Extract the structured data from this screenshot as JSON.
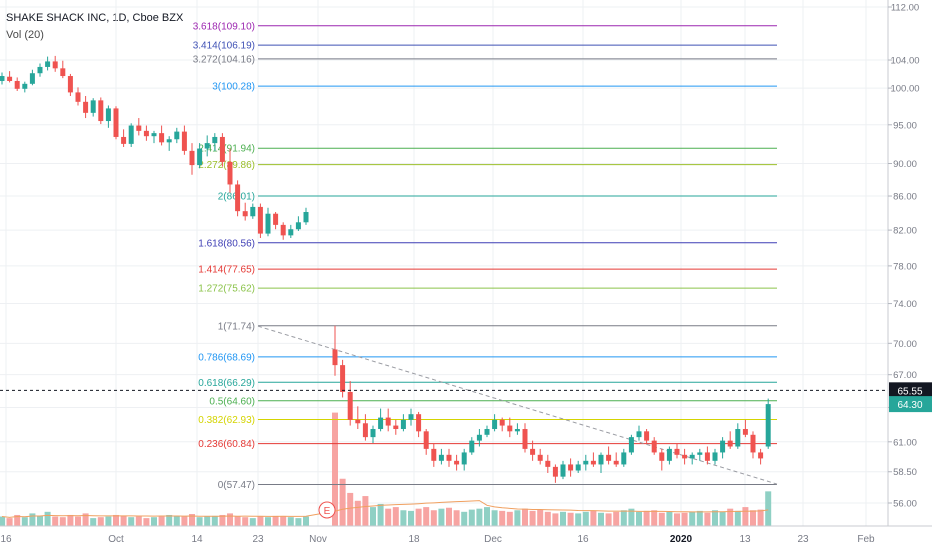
{
  "header": {
    "title": "SHAKE SHACK INC, 1D, Cboe BZX",
    "volume_label": "Vol (20)"
  },
  "chart_data": {
    "type": "candlestick",
    "symbol": "SHAKE SHACK INC",
    "interval": "1D",
    "exchange": "Cboe BZX",
    "y_axis": {
      "ticks": [
        "56.00",
        "58.50",
        "61.00",
        "64.00",
        "67.00",
        "70.00",
        "74.00",
        "78.00",
        "82.00",
        "86.00",
        "90.00",
        "95.00",
        "100.00",
        "104.00",
        "112.00"
      ],
      "ylim": [
        54.7,
        113.5
      ],
      "scale": "log"
    },
    "x_axis": {
      "ticks": [
        "16",
        "Oct",
        "14",
        "23",
        "Nov",
        "18",
        "Dec",
        "16",
        "2020",
        "13",
        "23",
        "Feb"
      ]
    },
    "price_labels": {
      "crosshair": "65.55",
      "last": "64.30"
    },
    "fib_levels": [
      {
        "label": "3.618(109.10)",
        "value": 109.1,
        "color": "#9c27b0"
      },
      {
        "label": "3.414(106.19)",
        "value": 106.19,
        "color": "#3f51b5"
      },
      {
        "label": "3.272(104.16)",
        "value": 104.16,
        "color": "#787b86"
      },
      {
        "label": "3(100.28)",
        "value": 100.28,
        "color": "#2196f3"
      },
      {
        "label": "2.414(91.94)",
        "value": 91.94,
        "color": "#4caf50"
      },
      {
        "label": "2.272(89.86)",
        "value": 89.86,
        "color": "#9bbf2a"
      },
      {
        "label": "2(86.01)",
        "value": 86.01,
        "color": "#26a69a"
      },
      {
        "label": "1.618(80.56)",
        "value": 80.56,
        "color": "#3f3fb5"
      },
      {
        "label": "1.414(77.65)",
        "value": 77.65,
        "color": "#e53935"
      },
      {
        "label": "1.272(75.62)",
        "value": 75.62,
        "color": "#8bc34a"
      },
      {
        "label": "1(71.74)",
        "value": 71.74,
        "color": "#787b86"
      },
      {
        "label": "0.786(68.69)",
        "value": 68.69,
        "color": "#2196f3"
      },
      {
        "label": "0.618(66.29)",
        "value": 66.29,
        "color": "#26a69a"
      },
      {
        "label": "0.5(64.60)",
        "value": 64.6,
        "color": "#4caf50"
      },
      {
        "label": "0.382(62.93)",
        "value": 62.93,
        "color": "#d4d400"
      },
      {
        "label": "0.236(60.84)",
        "value": 60.84,
        "color": "#e53935"
      },
      {
        "label": "0(57.47)",
        "value": 57.47,
        "color": "#787b86"
      }
    ],
    "trendline": {
      "from": {
        "date": "Oct 31",
        "price": 71.7
      },
      "to": {
        "date": "Jan 14",
        "price": 57.5
      }
    },
    "candles": [
      {
        "o": 101.0,
        "h": 102.2,
        "l": 100.5,
        "c": 101.7
      },
      {
        "o": 101.6,
        "h": 102.4,
        "l": 100.8,
        "c": 101.0
      },
      {
        "o": 101.0,
        "h": 101.5,
        "l": 99.6,
        "c": 99.9
      },
      {
        "o": 99.9,
        "h": 100.9,
        "l": 99.4,
        "c": 100.6
      },
      {
        "o": 100.6,
        "h": 102.6,
        "l": 100.4,
        "c": 102.1
      },
      {
        "o": 102.1,
        "h": 103.5,
        "l": 101.6,
        "c": 103.0
      },
      {
        "o": 103.0,
        "h": 104.5,
        "l": 102.5,
        "c": 103.8
      },
      {
        "o": 103.8,
        "h": 104.6,
        "l": 102.3,
        "c": 102.8
      },
      {
        "o": 102.8,
        "h": 103.9,
        "l": 101.4,
        "c": 101.7
      },
      {
        "o": 101.7,
        "h": 102.0,
        "l": 98.9,
        "c": 99.4
      },
      {
        "o": 99.4,
        "h": 100.1,
        "l": 97.6,
        "c": 98.1
      },
      {
        "o": 98.1,
        "h": 98.9,
        "l": 95.9,
        "c": 96.6
      },
      {
        "o": 96.6,
        "h": 98.6,
        "l": 96.1,
        "c": 98.3
      },
      {
        "o": 98.3,
        "h": 98.7,
        "l": 95.1,
        "c": 95.5
      },
      {
        "o": 95.5,
        "h": 97.6,
        "l": 94.6,
        "c": 97.2
      },
      {
        "o": 97.2,
        "h": 97.5,
        "l": 93.1,
        "c": 93.4
      },
      {
        "o": 93.4,
        "h": 94.4,
        "l": 92.1,
        "c": 92.5
      },
      {
        "o": 92.5,
        "h": 95.2,
        "l": 92.1,
        "c": 94.9
      },
      {
        "o": 94.9,
        "h": 95.9,
        "l": 93.6,
        "c": 94.2
      },
      {
        "o": 94.2,
        "h": 94.9,
        "l": 92.9,
        "c": 93.5
      },
      {
        "o": 93.5,
        "h": 94.2,
        "l": 92.6,
        "c": 93.9
      },
      {
        "o": 93.9,
        "h": 94.9,
        "l": 92.3,
        "c": 92.7
      },
      {
        "o": 92.7,
        "h": 93.5,
        "l": 91.6,
        "c": 93.1
      },
      {
        "o": 93.1,
        "h": 94.6,
        "l": 92.6,
        "c": 94.1
      },
      {
        "o": 94.1,
        "h": 94.9,
        "l": 91.1,
        "c": 91.6
      },
      {
        "o": 91.6,
        "h": 92.6,
        "l": 88.6,
        "c": 89.8
      },
      {
        "o": 89.8,
        "h": 92.6,
        "l": 89.4,
        "c": 91.9
      },
      {
        "o": 91.9,
        "h": 93.6,
        "l": 90.9,
        "c": 92.6
      },
      {
        "o": 92.6,
        "h": 93.9,
        "l": 91.6,
        "c": 93.4
      },
      {
        "o": 93.4,
        "h": 93.9,
        "l": 89.6,
        "c": 90.2
      },
      {
        "o": 90.2,
        "h": 91.9,
        "l": 86.4,
        "c": 87.4
      },
      {
        "o": 87.4,
        "h": 87.9,
        "l": 83.6,
        "c": 84.2
      },
      {
        "o": 84.2,
        "h": 85.2,
        "l": 83.1,
        "c": 83.6
      },
      {
        "o": 83.6,
        "h": 85.1,
        "l": 83.3,
        "c": 84.7
      },
      {
        "o": 84.7,
        "h": 85.1,
        "l": 81.1,
        "c": 81.6
      },
      {
        "o": 81.6,
        "h": 84.6,
        "l": 81.3,
        "c": 83.9
      },
      {
        "o": 83.9,
        "h": 84.1,
        "l": 82.1,
        "c": 82.6
      },
      {
        "o": 82.6,
        "h": 82.9,
        "l": 80.9,
        "c": 81.4
      },
      {
        "o": 81.4,
        "h": 82.6,
        "l": 81.1,
        "c": 82.1
      },
      {
        "o": 82.1,
        "h": 83.6,
        "l": 81.9,
        "c": 82.9
      },
      {
        "o": 82.9,
        "h": 84.6,
        "l": 82.6,
        "c": 84.1
      },
      {
        "o": 69.4,
        "h": 71.74,
        "l": 66.9,
        "c": 67.9
      },
      {
        "o": 67.9,
        "h": 68.4,
        "l": 64.9,
        "c": 65.4
      },
      {
        "o": 65.4,
        "h": 66.4,
        "l": 62.4,
        "c": 62.9
      },
      {
        "o": 62.9,
        "h": 64.1,
        "l": 62.1,
        "c": 62.6
      },
      {
        "o": 62.6,
        "h": 63.4,
        "l": 61.1,
        "c": 61.4
      },
      {
        "o": 61.4,
        "h": 62.4,
        "l": 60.9,
        "c": 62.1
      },
      {
        "o": 62.1,
        "h": 63.9,
        "l": 61.9,
        "c": 63.1
      },
      {
        "o": 63.1,
        "h": 63.9,
        "l": 61.9,
        "c": 62.4
      },
      {
        "o": 62.4,
        "h": 62.9,
        "l": 61.6,
        "c": 62.1
      },
      {
        "o": 62.1,
        "h": 63.4,
        "l": 61.9,
        "c": 62.9
      },
      {
        "o": 62.9,
        "h": 63.9,
        "l": 62.4,
        "c": 63.4
      },
      {
        "o": 63.4,
        "h": 63.6,
        "l": 61.4,
        "c": 61.9
      },
      {
        "o": 61.9,
        "h": 62.1,
        "l": 59.9,
        "c": 60.4
      },
      {
        "o": 60.4,
        "h": 60.9,
        "l": 58.9,
        "c": 59.4
      },
      {
        "o": 59.4,
        "h": 60.4,
        "l": 59.1,
        "c": 59.9
      },
      {
        "o": 59.9,
        "h": 60.4,
        "l": 58.9,
        "c": 59.4
      },
      {
        "o": 59.4,
        "h": 59.9,
        "l": 58.6,
        "c": 59.1
      },
      {
        "o": 59.1,
        "h": 60.4,
        "l": 58.6,
        "c": 60.1
      },
      {
        "o": 60.1,
        "h": 61.4,
        "l": 59.9,
        "c": 61.1
      },
      {
        "o": 61.1,
        "h": 62.1,
        "l": 60.6,
        "c": 61.6
      },
      {
        "o": 61.6,
        "h": 62.4,
        "l": 61.4,
        "c": 62.1
      },
      {
        "o": 62.1,
        "h": 63.4,
        "l": 61.9,
        "c": 62.9
      },
      {
        "o": 62.9,
        "h": 63.1,
        "l": 61.9,
        "c": 62.4
      },
      {
        "o": 62.4,
        "h": 63.1,
        "l": 61.4,
        "c": 61.9
      },
      {
        "o": 61.9,
        "h": 62.6,
        "l": 61.6,
        "c": 62.1
      },
      {
        "o": 62.1,
        "h": 62.6,
        "l": 60.1,
        "c": 60.4
      },
      {
        "o": 60.4,
        "h": 61.1,
        "l": 59.4,
        "c": 59.9
      },
      {
        "o": 59.9,
        "h": 60.4,
        "l": 59.1,
        "c": 59.4
      },
      {
        "o": 59.4,
        "h": 59.9,
        "l": 58.4,
        "c": 58.9
      },
      {
        "o": 58.9,
        "h": 59.1,
        "l": 57.6,
        "c": 58.1
      },
      {
        "o": 58.1,
        "h": 59.4,
        "l": 57.9,
        "c": 59.1
      },
      {
        "o": 59.1,
        "h": 59.6,
        "l": 58.1,
        "c": 58.6
      },
      {
        "o": 58.6,
        "h": 59.4,
        "l": 58.4,
        "c": 59.1
      },
      {
        "o": 59.1,
        "h": 59.9,
        "l": 58.6,
        "c": 59.4
      },
      {
        "o": 59.4,
        "h": 60.1,
        "l": 58.9,
        "c": 59.1
      },
      {
        "o": 59.1,
        "h": 60.1,
        "l": 58.4,
        "c": 59.9
      },
      {
        "o": 59.9,
        "h": 60.6,
        "l": 59.1,
        "c": 59.4
      },
      {
        "o": 59.4,
        "h": 60.1,
        "l": 58.9,
        "c": 59.1
      },
      {
        "o": 59.1,
        "h": 60.4,
        "l": 58.9,
        "c": 60.1
      },
      {
        "o": 60.1,
        "h": 61.6,
        "l": 59.9,
        "c": 61.4
      },
      {
        "o": 61.4,
        "h": 62.4,
        "l": 61.1,
        "c": 61.9
      },
      {
        "o": 61.9,
        "h": 62.1,
        "l": 60.9,
        "c": 61.1
      },
      {
        "o": 61.1,
        "h": 61.4,
        "l": 59.9,
        "c": 60.1
      },
      {
        "o": 60.1,
        "h": 60.4,
        "l": 58.6,
        "c": 59.4
      },
      {
        "o": 59.4,
        "h": 60.6,
        "l": 59.1,
        "c": 60.4
      },
      {
        "o": 60.4,
        "h": 60.9,
        "l": 59.6,
        "c": 59.9
      },
      {
        "o": 59.9,
        "h": 60.4,
        "l": 59.1,
        "c": 59.6
      },
      {
        "o": 59.6,
        "h": 60.1,
        "l": 59.1,
        "c": 59.9
      },
      {
        "o": 59.9,
        "h": 60.4,
        "l": 59.4,
        "c": 60.1
      },
      {
        "o": 60.1,
        "h": 60.6,
        "l": 59.1,
        "c": 59.4
      },
      {
        "o": 59.4,
        "h": 60.4,
        "l": 59.1,
        "c": 60.1
      },
      {
        "o": 60.1,
        "h": 61.4,
        "l": 59.6,
        "c": 61.1
      },
      {
        "o": 61.1,
        "h": 61.9,
        "l": 60.4,
        "c": 60.6
      },
      {
        "o": 60.6,
        "h": 62.6,
        "l": 60.4,
        "c": 62.1
      },
      {
        "o": 62.1,
        "h": 62.9,
        "l": 61.4,
        "c": 61.6
      },
      {
        "o": 61.6,
        "h": 61.9,
        "l": 59.6,
        "c": 60.1
      },
      {
        "o": 60.1,
        "h": 60.4,
        "l": 59.1,
        "c": 59.6
      },
      {
        "o": 60.6,
        "h": 64.8,
        "l": 60.4,
        "c": 64.3
      }
    ],
    "volume": [
      0.3,
      0.25,
      0.35,
      0.28,
      0.4,
      0.32,
      0.45,
      0.3,
      0.28,
      0.35,
      0.3,
      0.4,
      0.25,
      0.28,
      0.3,
      0.35,
      0.32,
      0.28,
      0.3,
      0.25,
      0.28,
      0.3,
      0.35,
      0.32,
      0.3,
      0.38,
      0.28,
      0.3,
      0.32,
      0.35,
      0.4,
      0.3,
      0.28,
      0.25,
      0.3,
      0.28,
      0.32,
      0.3,
      0.28,
      0.25,
      0.3,
      3.6,
      1.5,
      1.05,
      0.8,
      0.95,
      0.6,
      0.7,
      0.55,
      0.6,
      0.5,
      0.48,
      0.55,
      0.6,
      0.5,
      0.55,
      0.58,
      0.5,
      0.45,
      0.52,
      0.55,
      0.6,
      0.5,
      0.48,
      0.45,
      0.5,
      0.55,
      0.48,
      0.52,
      0.45,
      0.4,
      0.45,
      0.42,
      0.4,
      0.45,
      0.48,
      0.42,
      0.4,
      0.45,
      0.5,
      0.55,
      0.45,
      0.48,
      0.5,
      0.42,
      0.45,
      0.4,
      0.42,
      0.45,
      0.48,
      0.42,
      0.5,
      0.45,
      0.55,
      0.48,
      0.6,
      0.5,
      0.52,
      1.1
    ]
  },
  "markers": {
    "earnings": "E"
  },
  "colors": {
    "up": "#26a69a",
    "down": "#ef5350",
    "up_volume": "#8fd0c4",
    "down_volume": "#f7a4a2",
    "volume_ma": "#f0a060",
    "grid": "#eef0f3",
    "axis_text": "#787b86"
  }
}
